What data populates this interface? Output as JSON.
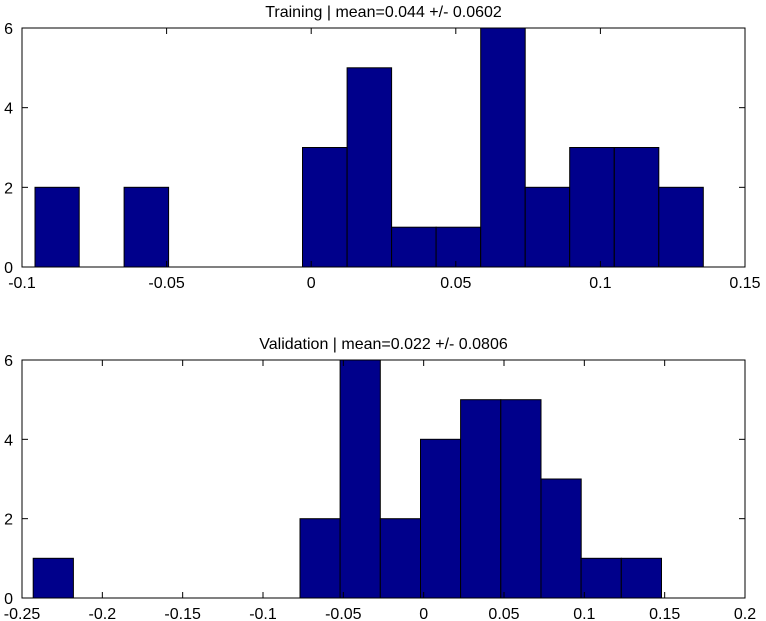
{
  "chart_data": [
    {
      "type": "bar",
      "title": "Training | mean=0.044 +/- 0.0602",
      "xlim": [
        -0.1,
        0.15
      ],
      "ylim": [
        0,
        6
      ],
      "xticks": [
        -0.1,
        -0.05,
        0,
        0.05,
        0.1,
        0.15
      ],
      "xtick_labels": [
        "-0.1",
        "-0.05",
        "0",
        "0.05",
        "0.1",
        "0.15"
      ],
      "yticks": [
        0,
        2,
        4,
        6
      ],
      "ytick_labels": [
        "0",
        "2",
        "4",
        "6"
      ],
      "bars": [
        {
          "x0": -0.0955,
          "x1": -0.0802,
          "value": 2
        },
        {
          "x0": -0.0647,
          "x1": -0.0493,
          "value": 2
        },
        {
          "x0": -0.003,
          "x1": 0.0124,
          "value": 3
        },
        {
          "x0": 0.0124,
          "x1": 0.0278,
          "value": 5
        },
        {
          "x0": 0.0278,
          "x1": 0.0432,
          "value": 1
        },
        {
          "x0": 0.0432,
          "x1": 0.0586,
          "value": 1
        },
        {
          "x0": 0.0586,
          "x1": 0.074,
          "value": 6
        },
        {
          "x0": 0.074,
          "x1": 0.0894,
          "value": 2
        },
        {
          "x0": 0.0894,
          "x1": 0.1048,
          "value": 3
        },
        {
          "x0": 0.1048,
          "x1": 0.1202,
          "value": 3
        },
        {
          "x0": 0.1202,
          "x1": 0.1356,
          "value": 2
        }
      ],
      "bar_color": "#00008b",
      "grid": false
    },
    {
      "type": "bar",
      "title": "Validation | mean=0.022 +/- 0.0806",
      "xlim": [
        -0.25,
        0.2
      ],
      "ylim": [
        0,
        6
      ],
      "xticks": [
        -0.25,
        -0.2,
        -0.15,
        -0.1,
        -0.05,
        0,
        0.05,
        0.1,
        0.15,
        0.2
      ],
      "xtick_labels": [
        "-0.25",
        "-0.2",
        "-0.15",
        "-0.1",
        "-0.05",
        "0",
        "0.05",
        "0.1",
        "0.15",
        "0.2"
      ],
      "yticks": [
        0,
        2,
        4,
        6
      ],
      "ytick_labels": [
        "0",
        "2",
        "4",
        "6"
      ],
      "bars": [
        {
          "x0": -0.243,
          "x1": -0.218,
          "value": 1
        },
        {
          "x0": -0.077,
          "x1": -0.052,
          "value": 2
        },
        {
          "x0": -0.052,
          "x1": -0.027,
          "value": 6
        },
        {
          "x0": -0.027,
          "x1": -0.002,
          "value": 2
        },
        {
          "x0": -0.002,
          "x1": 0.023,
          "value": 4
        },
        {
          "x0": 0.023,
          "x1": 0.048,
          "value": 5
        },
        {
          "x0": 0.048,
          "x1": 0.073,
          "value": 5
        },
        {
          "x0": 0.073,
          "x1": 0.098,
          "value": 3
        },
        {
          "x0": 0.098,
          "x1": 0.123,
          "value": 1
        },
        {
          "x0": 0.123,
          "x1": 0.148,
          "value": 1
        }
      ],
      "bar_color": "#00008b",
      "grid": false
    }
  ]
}
